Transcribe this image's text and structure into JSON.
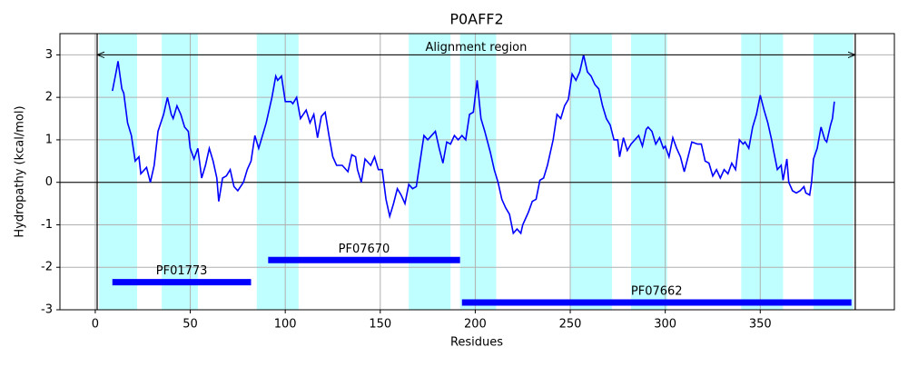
{
  "chart_data": {
    "type": "line",
    "title": "P0AFF2",
    "xlabel": "Residues",
    "ylabel": "Hydropathy (kcal/mol)",
    "x": [
      9,
      11,
      12,
      14,
      15,
      17,
      19,
      21,
      23,
      24,
      27,
      29,
      31,
      33,
      36,
      38,
      40,
      41,
      43,
      45,
      47,
      49,
      50,
      52,
      54,
      56,
      58,
      60,
      62,
      64,
      65,
      67,
      69,
      71,
      73,
      75,
      78,
      80,
      82,
      84,
      86,
      88,
      90,
      93,
      95,
      96,
      98,
      100,
      103,
      104,
      106,
      108,
      111,
      113,
      115,
      117,
      119,
      121,
      123,
      125,
      127,
      130,
      133,
      135,
      137,
      138,
      140,
      142,
      145,
      147,
      149,
      151,
      153,
      155,
      157,
      159,
      161,
      163,
      165,
      167,
      169,
      171,
      173,
      175,
      177,
      179,
      181,
      183,
      185,
      187,
      189,
      191,
      193,
      195,
      197,
      199,
      201,
      203,
      205,
      208,
      210,
      212,
      214,
      216,
      218,
      220,
      222,
      224,
      225,
      228,
      230,
      232,
      234,
      236,
      238,
      241,
      243,
      245,
      247,
      249,
      251,
      253,
      255,
      257,
      259,
      261,
      263,
      265,
      267,
      269,
      271,
      273,
      275,
      276,
      278,
      280,
      282,
      284,
      286,
      288,
      290,
      291,
      293,
      295,
      297,
      299,
      300,
      302,
      304,
      306,
      308,
      310,
      312,
      314,
      317,
      319,
      321,
      323,
      325,
      327,
      329,
      331,
      333,
      335,
      337,
      339,
      341,
      342,
      344,
      346,
      348,
      350,
      352,
      354,
      356,
      357,
      359,
      361,
      362,
      364,
      365,
      367,
      369,
      371,
      373,
      374,
      376,
      377,
      378,
      380,
      382,
      384,
      385,
      387,
      388,
      389
    ],
    "values": [
      2.15,
      2.6,
      2.85,
      2.2,
      2.1,
      1.4,
      1.1,
      0.5,
      0.6,
      0.2,
      0.35,
      0.0,
      0.4,
      1.2,
      1.6,
      2.0,
      1.6,
      1.5,
      1.8,
      1.6,
      1.3,
      1.2,
      0.8,
      0.55,
      0.8,
      0.1,
      0.4,
      0.8,
      0.5,
      0.1,
      -0.45,
      0.1,
      0.15,
      0.3,
      -0.1,
      -0.2,
      0.0,
      0.3,
      0.5,
      1.1,
      0.8,
      1.1,
      1.4,
      2.0,
      2.5,
      2.4,
      2.5,
      1.9,
      1.9,
      1.85,
      2.0,
      1.5,
      1.7,
      1.4,
      1.6,
      1.05,
      1.55,
      1.65,
      1.1,
      0.6,
      0.4,
      0.4,
      0.25,
      0.65,
      0.6,
      0.3,
      0.0,
      0.55,
      0.4,
      0.6,
      0.3,
      0.3,
      -0.4,
      -0.8,
      -0.5,
      -0.15,
      -0.3,
      -0.5,
      -0.05,
      -0.15,
      -0.1,
      0.5,
      1.1,
      1.0,
      1.1,
      1.2,
      0.8,
      0.45,
      0.95,
      0.9,
      1.1,
      1.0,
      1.1,
      1.0,
      1.6,
      1.65,
      2.4,
      1.5,
      1.2,
      0.7,
      0.3,
      0.0,
      -0.4,
      -0.6,
      -0.75,
      -1.2,
      -1.1,
      -1.2,
      -1.0,
      -0.7,
      -0.45,
      -0.4,
      0.05,
      0.1,
      0.4,
      1.0,
      1.6,
      1.5,
      1.8,
      1.95,
      2.55,
      2.4,
      2.6,
      3.0,
      2.6,
      2.5,
      2.3,
      2.2,
      1.8,
      1.5,
      1.35,
      1.0,
      1.0,
      0.6,
      1.05,
      0.75,
      0.9,
      1.0,
      1.1,
      0.85,
      1.25,
      1.3,
      1.2,
      0.9,
      1.05,
      0.8,
      0.85,
      0.6,
      1.05,
      0.8,
      0.6,
      0.25,
      0.6,
      0.95,
      0.9,
      0.9,
      0.5,
      0.45,
      0.15,
      0.3,
      0.1,
      0.3,
      0.2,
      0.45,
      0.3,
      1.0,
      0.9,
      0.95,
      0.8,
      1.3,
      1.6,
      2.05,
      1.7,
      1.4,
      1.0,
      0.75,
      0.3,
      0.4,
      0.05,
      0.55,
      0.0,
      -0.2,
      -0.25,
      -0.2,
      -0.1,
      -0.25,
      -0.3,
      0.0,
      0.55,
      0.8,
      1.3,
      1.0,
      0.95,
      1.35,
      1.5,
      1.9
    ],
    "color": "#0000ff",
    "xlim": [
      -18.6,
      420.6
    ],
    "ylim": [
      -3,
      3.5
    ],
    "xticks": [
      0,
      50,
      100,
      150,
      200,
      250,
      300,
      350
    ],
    "yticks": [
      -3,
      -2,
      -1,
      0,
      1,
      2,
      3
    ],
    "grid": true,
    "regions": [
      [
        2,
        22
      ],
      [
        35,
        54
      ],
      [
        85,
        107
      ],
      [
        165,
        187
      ],
      [
        192,
        211
      ],
      [
        250,
        272
      ],
      [
        282,
        301
      ],
      [
        340,
        362
      ],
      [
        378,
        399
      ]
    ],
    "region_color": "#bfffff",
    "alignment": {
      "label": "Alignment region",
      "start": 1,
      "end": 400
    },
    "domains": [
      {
        "name": "PF01773",
        "start": 9,
        "end": 82,
        "y": -2.35,
        "color": "#0000ff"
      },
      {
        "name": "PF07670",
        "start": 91,
        "end": 192,
        "y": -1.83,
        "color": "#0000ff"
      },
      {
        "name": "PF07662",
        "start": 193,
        "end": 398,
        "y": -2.83,
        "color": "#0000ff"
      }
    ]
  }
}
